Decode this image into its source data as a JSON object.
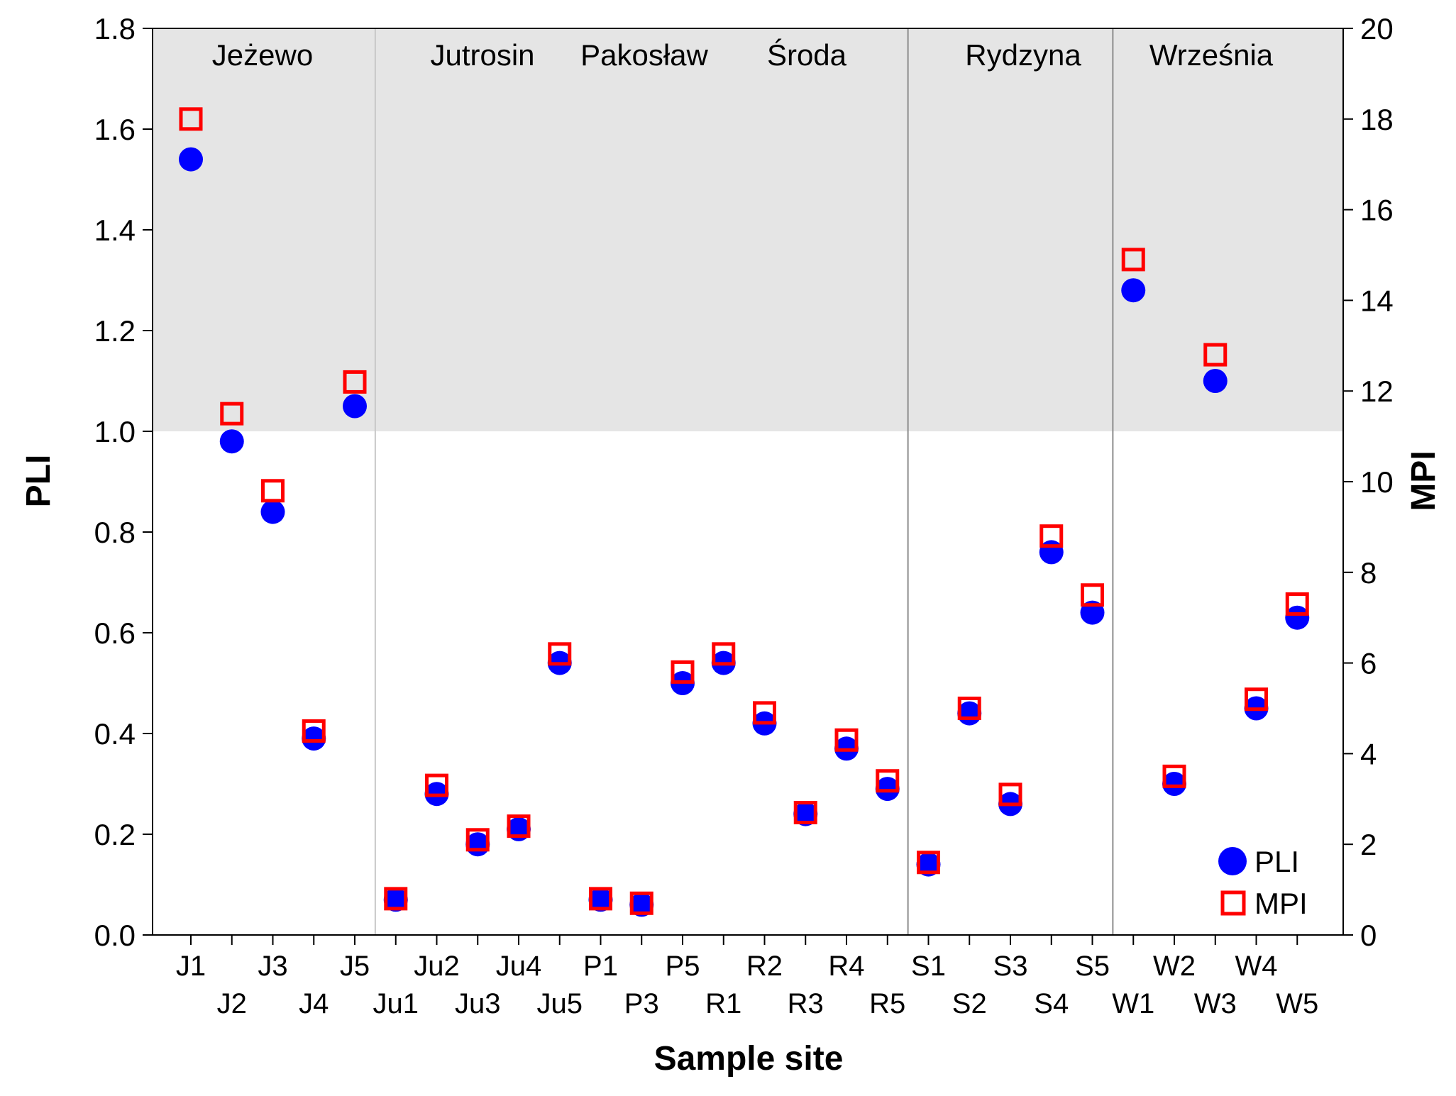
{
  "chart_data": {
    "type": "scatter",
    "xlabel": "Sample site",
    "ylabel_left": "PLI",
    "ylabel_right": "MPI",
    "ylim_left": [
      0,
      1.8
    ],
    "ylim_right": [
      0,
      20
    ],
    "yticks_left": [
      "0.0",
      "0.2",
      "0.4",
      "0.6",
      "0.8",
      "1.0",
      "1.2",
      "1.4",
      "1.6",
      "1.8"
    ],
    "yticks_right": [
      "0",
      "2",
      "4",
      "6",
      "8",
      "10",
      "12",
      "14",
      "16",
      "18",
      "20"
    ],
    "shaded_threshold_pli": 1.0,
    "categories": [
      "J1",
      "J2",
      "J3",
      "J4",
      "J5",
      "Ju1",
      "Ju2",
      "Ju3",
      "Ju4",
      "Ju5",
      "P1",
      "P3",
      "P5",
      "R1",
      "R2",
      "R3",
      "R4",
      "R5",
      "S1",
      "S2",
      "S3",
      "S4",
      "S5",
      "W1",
      "W2",
      "W3",
      "W4",
      "W5"
    ],
    "regions": [
      {
        "label": "Jeżewo",
        "start": 0,
        "end": 4
      },
      {
        "label": "Jutrosin",
        "start": 5,
        "end": 9
      },
      {
        "label": "Pakosław",
        "start": 10,
        "end": 12
      },
      {
        "label": "Środa",
        "start": 13,
        "end": 17
      },
      {
        "label": "Rydzyna",
        "start": 18,
        "end": 22
      },
      {
        "label": "Września",
        "start": 23,
        "end": 27
      }
    ],
    "series": [
      {
        "name": "PLI",
        "axis": "left",
        "marker": "circle",
        "color": "#0000ff",
        "values": [
          1.54,
          0.98,
          0.84,
          0.39,
          1.05,
          0.07,
          0.28,
          0.18,
          0.21,
          0.54,
          0.07,
          0.06,
          0.5,
          0.54,
          0.42,
          0.24,
          0.37,
          0.29,
          0.14,
          0.44,
          0.26,
          0.76,
          0.64,
          1.28,
          0.3,
          1.1,
          0.45,
          0.63
        ]
      },
      {
        "name": "MPI",
        "axis": "right",
        "marker": "square-open",
        "color": "#ff0000",
        "values": [
          18.0,
          11.5,
          9.8,
          4.5,
          12.2,
          0.8,
          3.3,
          2.1,
          2.4,
          6.2,
          0.8,
          0.7,
          5.8,
          6.2,
          4.9,
          2.7,
          4.3,
          3.4,
          1.6,
          5.0,
          3.1,
          8.8,
          7.5,
          14.9,
          3.5,
          12.8,
          5.2,
          7.3
        ]
      }
    ],
    "legend": {
      "position": "bottom-right",
      "entries": [
        "PLI",
        "MPI"
      ]
    }
  },
  "colors": {
    "pli": "#0000ff",
    "mpi": "#ff0000",
    "shade": "#e5e5e5",
    "axis": "#000000",
    "divider": "#8c8c8c"
  }
}
